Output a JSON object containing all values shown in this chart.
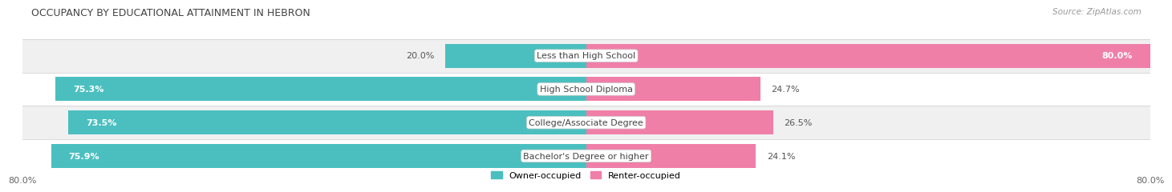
{
  "title": "OCCUPANCY BY EDUCATIONAL ATTAINMENT IN HEBRON",
  "source": "Source: ZipAtlas.com",
  "categories": [
    "Less than High School",
    "High School Diploma",
    "College/Associate Degree",
    "Bachelor's Degree or higher"
  ],
  "owner_pct": [
    20.0,
    75.3,
    73.5,
    75.9
  ],
  "renter_pct": [
    80.0,
    24.7,
    26.5,
    24.1
  ],
  "owner_color": "#4BBFBF",
  "renter_color": "#F07FA8",
  "bg_color": "#FFFFFF",
  "row_bg_colors": [
    "#F0F0F0",
    "#FFFFFF",
    "#F0F0F0",
    "#FFFFFF"
  ],
  "axis_min": -80.0,
  "axis_max": 80.0,
  "legend_owner": "Owner-occupied",
  "legend_renter": "Renter-occupied",
  "left_axis_label": "80.0%",
  "right_axis_label": "80.0%"
}
